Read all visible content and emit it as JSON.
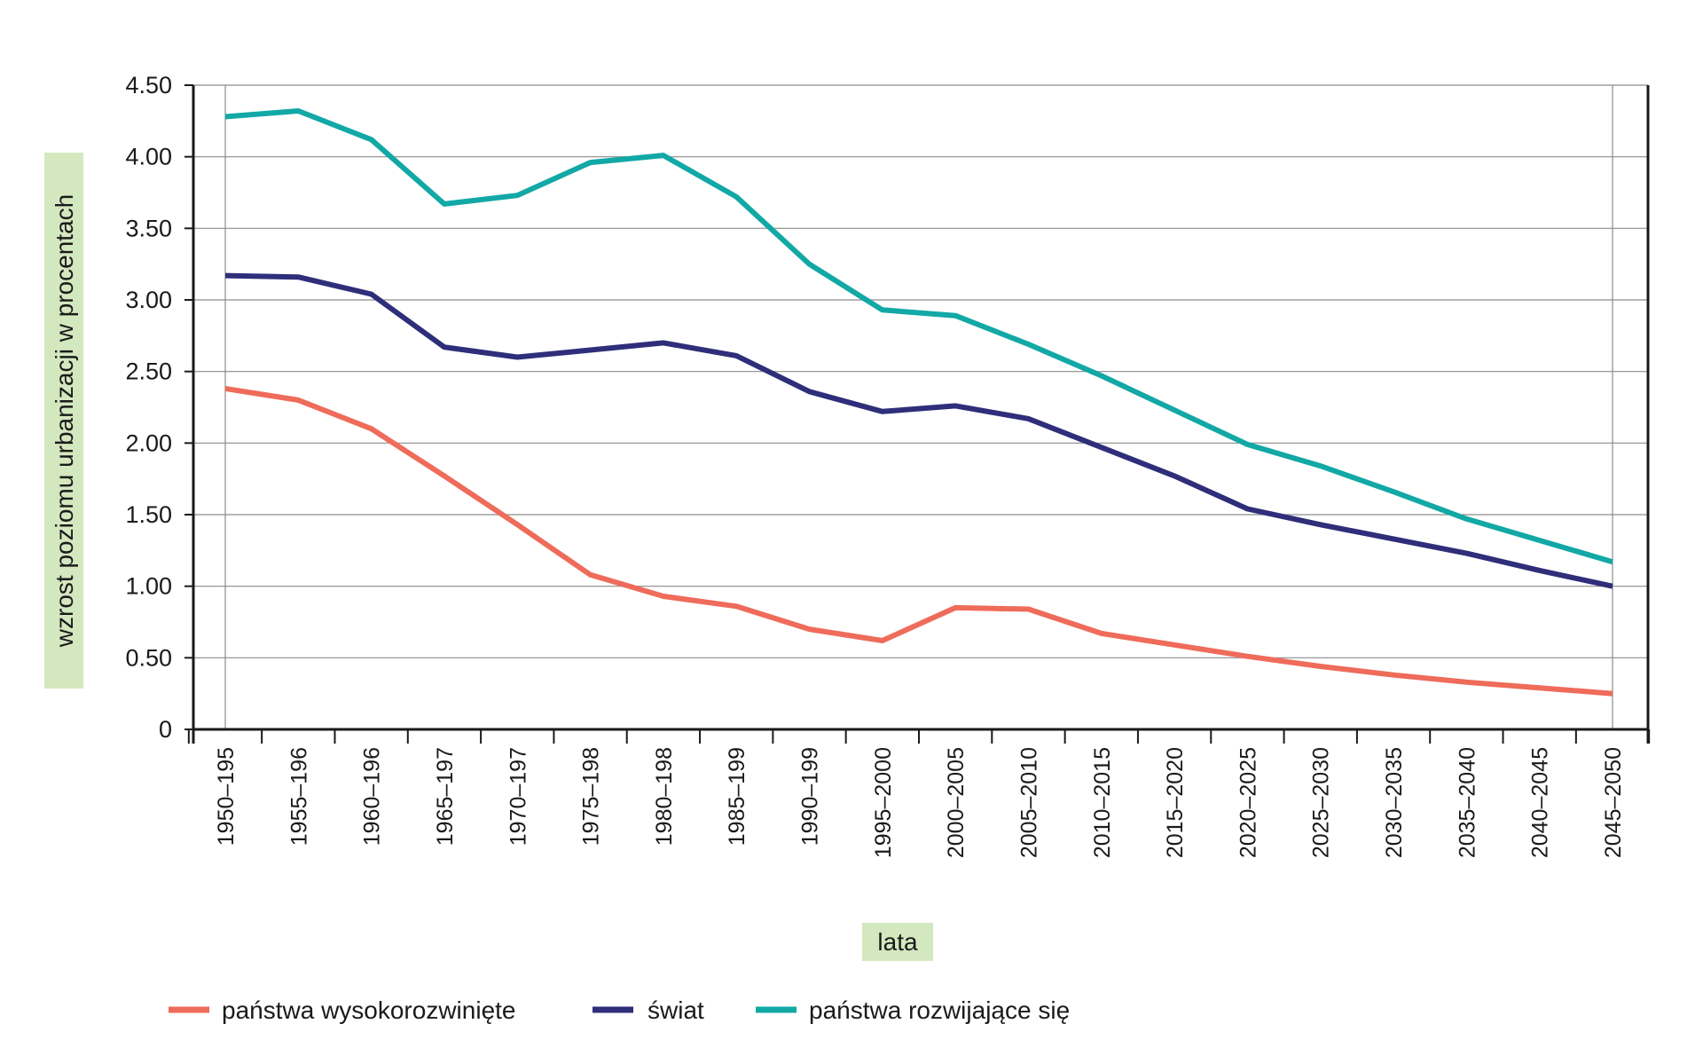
{
  "chart_data": {
    "type": "line",
    "title": "",
    "xlabel": "lata",
    "ylabel": "wzrost poziomu urbanizacji w procentach",
    "ylim": [
      0,
      4.5
    ],
    "y_ticks": [
      0,
      0.5,
      1.0,
      1.5,
      2.0,
      2.5,
      3.0,
      3.5,
      4.0,
      4.5
    ],
    "y_tick_labels": [
      "0",
      "0.50",
      "1.00",
      "1.50",
      "2.00",
      "2.50",
      "3.00",
      "3.50",
      "4.00",
      "4.50"
    ],
    "categories": [
      "1950–195",
      "1955–196",
      "1960–196",
      "1965–197",
      "1970–197",
      "1975–198",
      "1980–198",
      "1985–199",
      "1990–199",
      "1995–2000",
      "2000–2005",
      "2005–2010",
      "2010–2015",
      "2015–2020",
      "2020–2025",
      "2025–2030",
      "2030–2035",
      "2035–2040",
      "2040–2045",
      "2045–2050"
    ],
    "series": [
      {
        "name": "państwa wysokorozwinięte",
        "color": "#ef6b5a",
        "values": [
          2.38,
          2.3,
          2.1,
          1.77,
          1.43,
          1.08,
          0.93,
          0.86,
          0.7,
          0.62,
          0.85,
          0.84,
          0.67,
          0.59,
          0.51,
          0.44,
          0.38,
          0.33,
          0.29,
          0.25
        ]
      },
      {
        "name": "świat",
        "color": "#2e2e7a",
        "values": [
          3.17,
          3.16,
          3.04,
          2.67,
          2.6,
          2.65,
          2.7,
          2.61,
          2.36,
          2.22,
          2.26,
          2.17,
          1.97,
          1.77,
          1.54,
          1.43,
          1.33,
          1.23,
          1.11,
          1.0
        ]
      },
      {
        "name": "państwa rozwijające się",
        "color": "#12a8a6",
        "values": [
          4.28,
          4.32,
          4.12,
          3.67,
          3.73,
          3.96,
          4.01,
          3.72,
          3.25,
          2.93,
          2.89,
          2.69,
          2.47,
          2.23,
          1.99,
          1.84,
          1.66,
          1.47,
          1.32,
          1.17
        ]
      }
    ],
    "grid": true,
    "legend_position": "bottom",
    "label_box_color": "#d4e8bf"
  }
}
